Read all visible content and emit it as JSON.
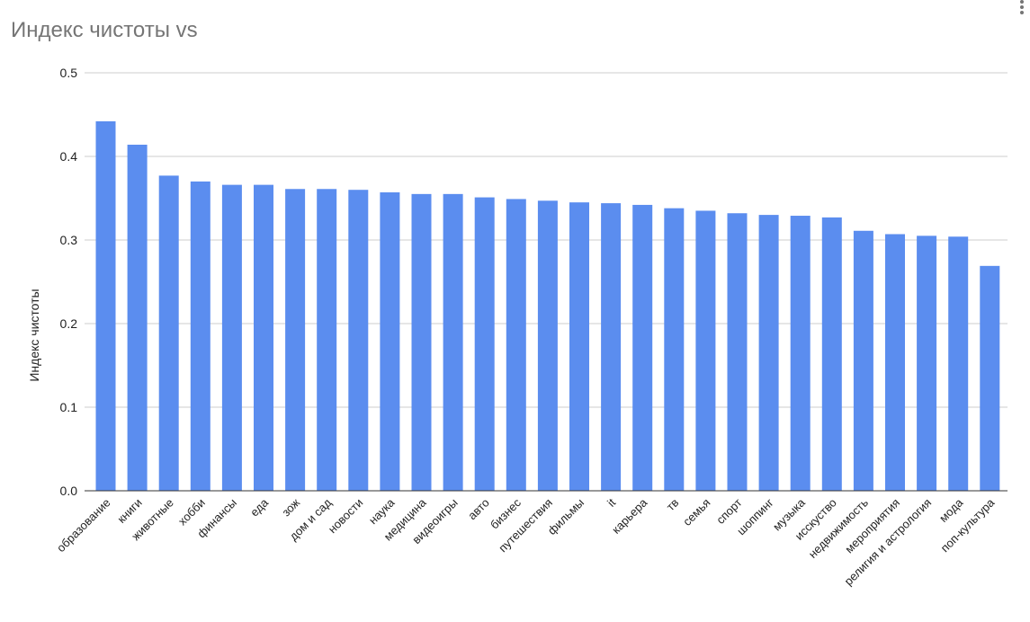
{
  "title": "Индекс чистоты vs",
  "menu_icon": "more-vert-icon",
  "chart_data": {
    "type": "bar",
    "title": "Индекс чистоты vs",
    "xlabel": "",
    "ylabel": "Индекс чистоты",
    "ylim": [
      0,
      0.5
    ],
    "yticks": [
      "0.0",
      "0.1",
      "0.2",
      "0.3",
      "0.4",
      "0.5"
    ],
    "grid": true,
    "bar_color": "#5B8DEF",
    "categories": [
      "образование",
      "книги",
      "животные",
      "хобби",
      "финансы",
      "еда",
      "зож",
      "дом и сад",
      "новости",
      "наука",
      "медицина",
      "видеоигры",
      "авто",
      "бизнес",
      "путешествия",
      "фильмы",
      "it",
      "карьера",
      "тв",
      "семья",
      "спорт",
      "шоппинг",
      "музыка",
      "исскуство",
      "недвижимость",
      "мероприятия",
      "религия и астрология",
      "мода",
      "поп-культура"
    ],
    "values": [
      0.442,
      0.414,
      0.377,
      0.37,
      0.366,
      0.366,
      0.361,
      0.361,
      0.36,
      0.357,
      0.355,
      0.355,
      0.351,
      0.349,
      0.347,
      0.345,
      0.344,
      0.342,
      0.338,
      0.335,
      0.332,
      0.33,
      0.329,
      0.327,
      0.311,
      0.307,
      0.305,
      0.304,
      0.269
    ]
  }
}
